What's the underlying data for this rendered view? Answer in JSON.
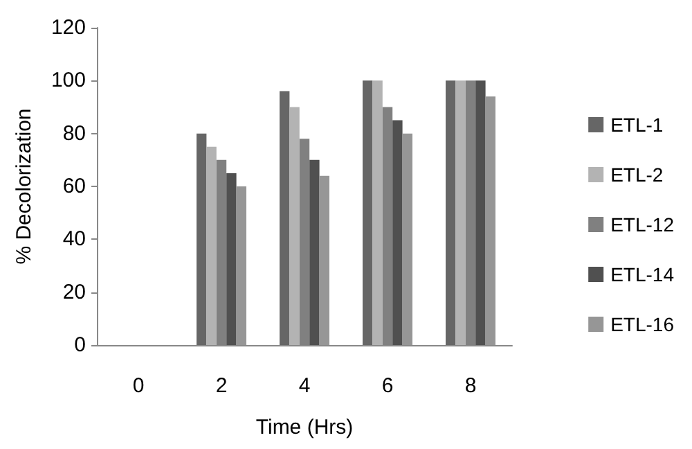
{
  "chart_data": {
    "type": "bar",
    "xlabel": "Time (Hrs)",
    "ylabel": "% Decolorization",
    "categories": [
      "0",
      "2",
      "4",
      "6",
      "8"
    ],
    "series": [
      {
        "name": "ETL-1",
        "color": "#666666",
        "values": [
          0,
          80,
          96,
          100,
          100
        ]
      },
      {
        "name": "ETL-2",
        "color": "#b3b3b3",
        "values": [
          0,
          75,
          90,
          100,
          100
        ]
      },
      {
        "name": "ETL-12",
        "color": "#808080",
        "values": [
          0,
          70,
          78,
          90,
          100
        ]
      },
      {
        "name": "ETL-14",
        "color": "#505050",
        "values": [
          0,
          65,
          70,
          85,
          100
        ]
      },
      {
        "name": "ETL-16",
        "color": "#969696",
        "values": [
          0,
          60,
          64,
          80,
          94
        ]
      }
    ],
    "ylim": [
      0,
      120
    ],
    "yticks": [
      0,
      20,
      40,
      60,
      80,
      100,
      120
    ],
    "grid": false,
    "legend": "right"
  }
}
